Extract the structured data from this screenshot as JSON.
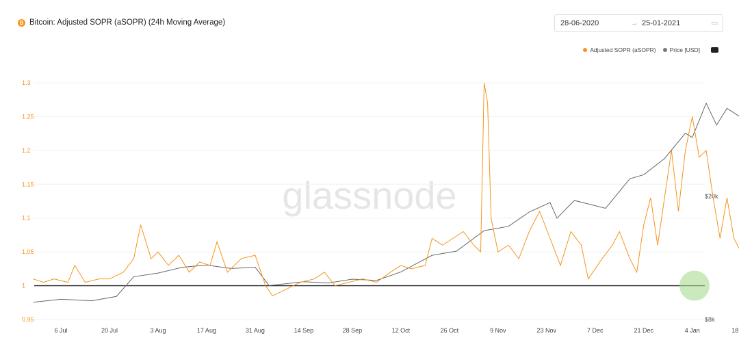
{
  "header": {
    "title": "Bitcoin: Adjusted SOPR (aSOPR) (24h Moving Average)",
    "date_from": "28-06-2020",
    "date_to": "25-01-2021",
    "arrow": "→"
  },
  "watermark": "glassnode",
  "colors": {
    "sopr": "#f7931a",
    "price": "#666666",
    "highlight": "#a6db8f"
  },
  "chart_data": {
    "type": "line",
    "legend_position": "top-right",
    "grid": true,
    "x_ticks": [
      "6 Jul",
      "20 Jul",
      "3 Aug",
      "17 Aug",
      "31 Aug",
      "14 Sep",
      "28 Sep",
      "12 Oct",
      "26 Oct",
      "9 Nov",
      "23 Nov",
      "7 Dec",
      "21 Dec",
      "4 Jan",
      "18 Jan"
    ],
    "y_left": {
      "ticks": [
        "0.95",
        "1",
        "1.05",
        "1.1",
        "1.15",
        "1.2",
        "1.25",
        "1.3"
      ],
      "range": [
        0.95,
        1.3
      ],
      "reference_line": 1
    },
    "y_right": {
      "ticks": [
        "$8k",
        "$20k"
      ],
      "scale": "log",
      "range": [
        8000,
        52000
      ]
    },
    "series": [
      {
        "name": "Adjusted SOPR (aSOPR)",
        "axis": "left",
        "points": [
          [
            "2020-06-28",
            1.01
          ],
          [
            "2020-07-01",
            1.005
          ],
          [
            "2020-07-04",
            1.01
          ],
          [
            "2020-07-08",
            1.005
          ],
          [
            "2020-07-10",
            1.03
          ],
          [
            "2020-07-13",
            1.005
          ],
          [
            "2020-07-17",
            1.01
          ],
          [
            "2020-07-20",
            1.01
          ],
          [
            "2020-07-24",
            1.02
          ],
          [
            "2020-07-27",
            1.04
          ],
          [
            "2020-07-29",
            1.09
          ],
          [
            "2020-08-01",
            1.04
          ],
          [
            "2020-08-03",
            1.05
          ],
          [
            "2020-08-06",
            1.03
          ],
          [
            "2020-08-09",
            1.045
          ],
          [
            "2020-08-12",
            1.02
          ],
          [
            "2020-08-15",
            1.035
          ],
          [
            "2020-08-18",
            1.03
          ],
          [
            "2020-08-20",
            1.065
          ],
          [
            "2020-08-23",
            1.02
          ],
          [
            "2020-08-27",
            1.04
          ],
          [
            "2020-08-31",
            1.045
          ],
          [
            "2020-09-03",
            1.0
          ],
          [
            "2020-09-05",
            0.985
          ],
          [
            "2020-09-09",
            0.995
          ],
          [
            "2020-09-13",
            1.005
          ],
          [
            "2020-09-17",
            1.01
          ],
          [
            "2020-09-20",
            1.02
          ],
          [
            "2020-09-23",
            1.0
          ],
          [
            "2020-09-27",
            1.005
          ],
          [
            "2020-10-01",
            1.01
          ],
          [
            "2020-10-05",
            1.005
          ],
          [
            "2020-10-09",
            1.02
          ],
          [
            "2020-10-12",
            1.03
          ],
          [
            "2020-10-15",
            1.025
          ],
          [
            "2020-10-19",
            1.03
          ],
          [
            "2020-10-21",
            1.07
          ],
          [
            "2020-10-24",
            1.06
          ],
          [
            "2020-10-27",
            1.07
          ],
          [
            "2020-10-30",
            1.08
          ],
          [
            "2020-11-02",
            1.06
          ],
          [
            "2020-11-04",
            1.05
          ],
          [
            "2020-11-05",
            1.3
          ],
          [
            "2020-11-06",
            1.27
          ],
          [
            "2020-11-07",
            1.1
          ],
          [
            "2020-11-09",
            1.05
          ],
          [
            "2020-11-12",
            1.06
          ],
          [
            "2020-11-15",
            1.04
          ],
          [
            "2020-11-18",
            1.08
          ],
          [
            "2020-11-21",
            1.11
          ],
          [
            "2020-11-24",
            1.07
          ],
          [
            "2020-11-27",
            1.03
          ],
          [
            "2020-11-30",
            1.08
          ],
          [
            "2020-12-03",
            1.06
          ],
          [
            "2020-12-05",
            1.01
          ],
          [
            "2020-12-09",
            1.04
          ],
          [
            "2020-12-12",
            1.06
          ],
          [
            "2020-12-14",
            1.08
          ],
          [
            "2020-12-17",
            1.04
          ],
          [
            "2020-12-19",
            1.02
          ],
          [
            "2020-12-21",
            1.09
          ],
          [
            "2020-12-23",
            1.13
          ],
          [
            "2020-12-25",
            1.06
          ],
          [
            "2020-12-27",
            1.13
          ],
          [
            "2020-12-29",
            1.2
          ],
          [
            "2020-12-31",
            1.11
          ],
          [
            "2021-01-02",
            1.2
          ],
          [
            "2021-01-04",
            1.25
          ],
          [
            "2021-01-06",
            1.19
          ],
          [
            "2021-01-08",
            1.2
          ],
          [
            "2021-01-10",
            1.13
          ],
          [
            "2021-01-12",
            1.07
          ],
          [
            "2021-01-14",
            1.13
          ],
          [
            "2021-01-16",
            1.07
          ],
          [
            "2021-01-18",
            1.05
          ],
          [
            "2021-01-20",
            1.07
          ],
          [
            "2021-01-22",
            1.01
          ],
          [
            "2021-01-24",
            1.03
          ],
          [
            "2021-01-25",
            1.04
          ]
        ]
      },
      {
        "name": "Price [USD]",
        "axis": "right",
        "points": [
          [
            "2020-06-28",
            9100
          ],
          [
            "2020-07-06",
            9300
          ],
          [
            "2020-07-15",
            9200
          ],
          [
            "2020-07-22",
            9500
          ],
          [
            "2020-07-27",
            11000
          ],
          [
            "2020-08-03",
            11300
          ],
          [
            "2020-08-10",
            11800
          ],
          [
            "2020-08-17",
            12000
          ],
          [
            "2020-08-24",
            11700
          ],
          [
            "2020-08-31",
            11800
          ],
          [
            "2020-09-04",
            10300
          ],
          [
            "2020-09-14",
            10600
          ],
          [
            "2020-09-21",
            10500
          ],
          [
            "2020-09-28",
            10800
          ],
          [
            "2020-10-05",
            10700
          ],
          [
            "2020-10-12",
            11400
          ],
          [
            "2020-10-21",
            12900
          ],
          [
            "2020-10-28",
            13300
          ],
          [
            "2020-11-05",
            15500
          ],
          [
            "2020-11-12",
            16000
          ],
          [
            "2020-11-18",
            17800
          ],
          [
            "2020-11-24",
            19100
          ],
          [
            "2020-11-26",
            17000
          ],
          [
            "2020-12-01",
            19400
          ],
          [
            "2020-12-10",
            18300
          ],
          [
            "2020-12-17",
            22800
          ],
          [
            "2020-12-21",
            23500
          ],
          [
            "2020-12-27",
            26500
          ],
          [
            "2021-01-02",
            32000
          ],
          [
            "2021-01-04",
            31000
          ],
          [
            "2021-01-08",
            40000
          ],
          [
            "2021-01-11",
            34000
          ],
          [
            "2021-01-14",
            38500
          ],
          [
            "2021-01-18",
            36000
          ],
          [
            "2021-01-22",
            31500
          ],
          [
            "2021-01-25",
            33500
          ]
        ]
      }
    ]
  }
}
